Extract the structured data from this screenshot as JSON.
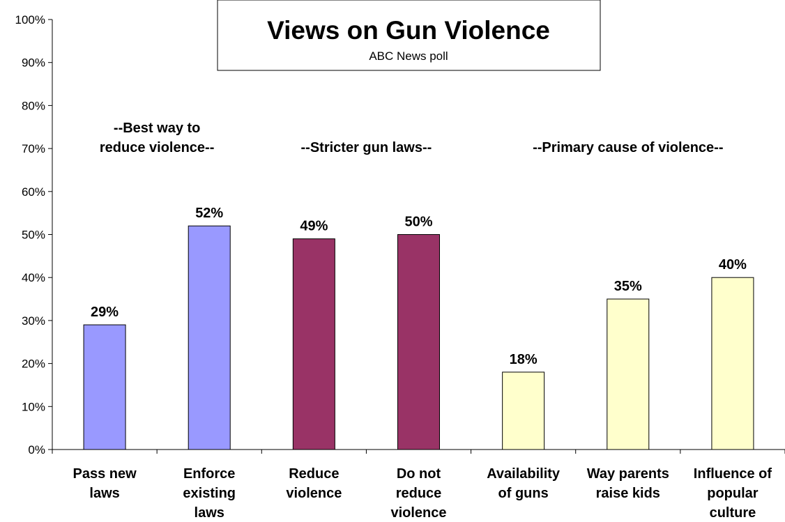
{
  "chart_data": {
    "type": "bar",
    "title": "Views on Gun Violence",
    "subtitle": "ABC News poll",
    "categories": [
      [
        "Pass new",
        "laws"
      ],
      [
        "Enforce",
        "existing",
        "laws"
      ],
      [
        "Reduce",
        "violence"
      ],
      [
        "Do not",
        "reduce",
        "violence"
      ],
      [
        "Availability",
        "of guns"
      ],
      [
        "Way parents",
        "raise kids"
      ],
      [
        "Influence of",
        "popular",
        "culture"
      ]
    ],
    "values": [
      29,
      52,
      49,
      50,
      18,
      35,
      40
    ],
    "value_labels": [
      "29%",
      "52%",
      "49%",
      "50%",
      "18%",
      "35%",
      "40%"
    ],
    "groups": [
      {
        "label": [
          "--Best way to",
          "reduce violence--"
        ],
        "members": [
          0,
          1
        ],
        "color": "#9999FF"
      },
      {
        "label": [
          "--Stricter gun laws--"
        ],
        "members": [
          2,
          3
        ],
        "color": "#993366"
      },
      {
        "label": [
          "--Primary cause of violence--"
        ],
        "members": [
          4,
          5,
          6
        ],
        "color": "#FFFFCC"
      }
    ],
    "ylim": [
      0,
      100
    ],
    "yticks": [
      "0%",
      "10%",
      "20%",
      "30%",
      "40%",
      "50%",
      "60%",
      "70%",
      "80%",
      "90%",
      "100%"
    ],
    "grid": false,
    "xlabel": "",
    "ylabel": ""
  }
}
